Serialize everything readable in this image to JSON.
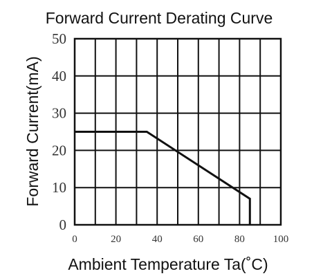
{
  "chart_data": {
    "type": "line",
    "title": "Forward Current  Derating Curve",
    "xlabel": "Ambient Temperature Ta(˚C)",
    "ylabel": "Forward Current(mA)",
    "xlim": [
      0,
      100
    ],
    "ylim": [
      0,
      50
    ],
    "x_ticks": [
      "0",
      "20",
      "40",
      "60",
      "80",
      "100"
    ],
    "y_ticks": [
      "0",
      "10",
      "20",
      "30",
      "40",
      "50"
    ],
    "grid": true,
    "line_color": "#111111",
    "series": [
      {
        "x": [
          0,
          35,
          85,
          85
        ],
        "values": [
          25,
          25,
          7,
          0
        ]
      }
    ]
  }
}
